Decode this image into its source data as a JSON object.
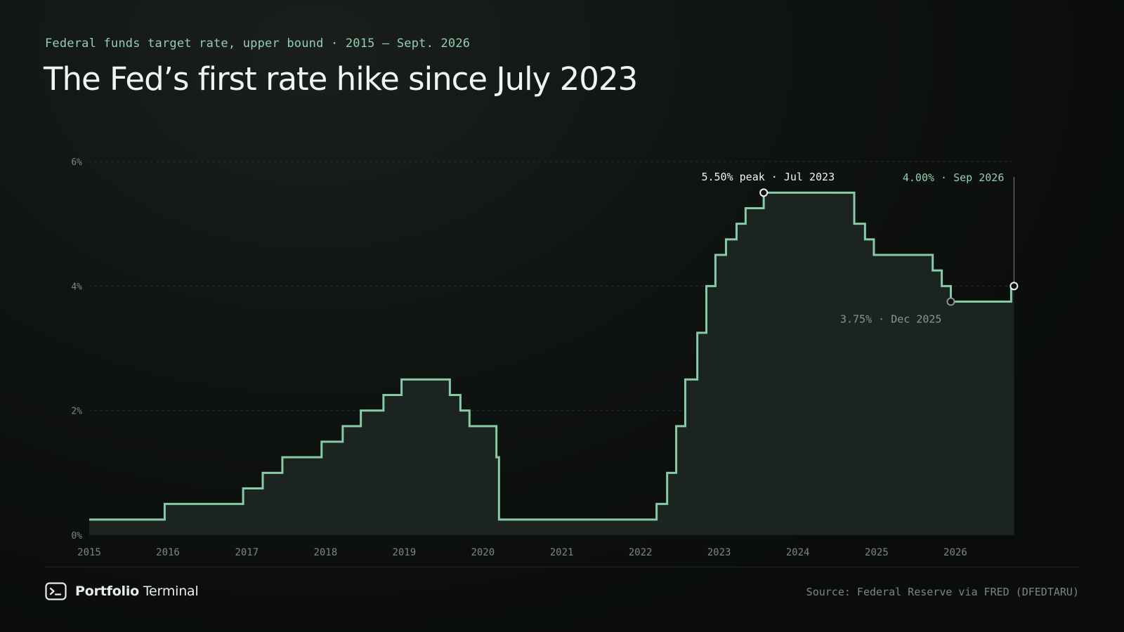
{
  "header": {
    "eyebrow": "Federal funds target rate, upper bound · 2015 – Sept. 2026",
    "title": "The Fed’s first rate hike since July 2023"
  },
  "footer": {
    "brand_strong": "Portfolio",
    "brand_light": "Terminal",
    "brand_icon": "terminal-prompt-icon",
    "source": "Source: Federal Reserve via FRED (DFEDTARU)"
  },
  "colors": {
    "line": "#86cba6",
    "area": "#1b2420",
    "annotation_peak": "#f2f4f3",
    "annotation_current": "#8fd1ad",
    "annotation_low": "#8a9490",
    "axis_text": "#7c8682",
    "grid": "#2a312e"
  },
  "chart_data": {
    "type": "area",
    "step": true,
    "title": "The Fed’s first rate hike since July 2023",
    "xlabel": "",
    "ylabel": "",
    "xlim": [
      "2015-01-01",
      "2026-09-30"
    ],
    "ylim": [
      0,
      6
    ],
    "x_ticks": [
      "2015",
      "2016",
      "2017",
      "2018",
      "2019",
      "2020",
      "2021",
      "2022",
      "2023",
      "2024",
      "2025",
      "2026"
    ],
    "y_ticks": [
      "0%",
      "2%",
      "4%",
      "6%"
    ],
    "grid": true,
    "series": [
      {
        "points": [
          {
            "date": "2015-01-01",
            "rate": 0.25
          },
          {
            "date": "2015-12-17",
            "rate": 0.5
          },
          {
            "date": "2016-12-15",
            "rate": 0.75
          },
          {
            "date": "2017-03-16",
            "rate": 1.0
          },
          {
            "date": "2017-06-15",
            "rate": 1.25
          },
          {
            "date": "2017-12-14",
            "rate": 1.5
          },
          {
            "date": "2018-03-22",
            "rate": 1.75
          },
          {
            "date": "2018-06-14",
            "rate": 2.0
          },
          {
            "date": "2018-09-27",
            "rate": 2.25
          },
          {
            "date": "2018-12-20",
            "rate": 2.5
          },
          {
            "date": "2019-08-01",
            "rate": 2.25
          },
          {
            "date": "2019-09-19",
            "rate": 2.0
          },
          {
            "date": "2019-10-31",
            "rate": 1.75
          },
          {
            "date": "2020-03-04",
            "rate": 1.25
          },
          {
            "date": "2020-03-16",
            "rate": 0.25
          },
          {
            "date": "2022-03-17",
            "rate": 0.5
          },
          {
            "date": "2022-05-05",
            "rate": 1.0
          },
          {
            "date": "2022-06-16",
            "rate": 1.75
          },
          {
            "date": "2022-07-28",
            "rate": 2.5
          },
          {
            "date": "2022-09-22",
            "rate": 3.25
          },
          {
            "date": "2022-11-03",
            "rate": 4.0
          },
          {
            "date": "2022-12-15",
            "rate": 4.5
          },
          {
            "date": "2023-02-02",
            "rate": 4.75
          },
          {
            "date": "2023-03-23",
            "rate": 5.0
          },
          {
            "date": "2023-05-04",
            "rate": 5.25
          },
          {
            "date": "2023-07-27",
            "rate": 5.5
          },
          {
            "date": "2024-09-19",
            "rate": 5.0
          },
          {
            "date": "2024-11-08",
            "rate": 4.75
          },
          {
            "date": "2024-12-19",
            "rate": 4.5
          },
          {
            "date": "2025-09-18",
            "rate": 4.25
          },
          {
            "date": "2025-10-30",
            "rate": 4.0
          },
          {
            "date": "2025-12-11",
            "rate": 3.75
          },
          {
            "date": "2026-09-17",
            "rate": 4.0
          },
          {
            "date": "2026-09-30",
            "rate": 4.0
          }
        ]
      }
    ],
    "annotations": [
      {
        "key": "peak",
        "label": "5.50% peak · Jul 2023",
        "date": "2023-07-27",
        "rate": 5.5,
        "placement": "above-left"
      },
      {
        "key": "current",
        "label": "4.00% · Sep 2026",
        "date": "2026-09-30",
        "rate": 4.0,
        "placement": "top-left",
        "leader_line": true
      },
      {
        "key": "low",
        "label": "3.75% · Dec 2025",
        "date": "2025-12-11",
        "rate": 3.75,
        "placement": "below-left"
      }
    ]
  }
}
